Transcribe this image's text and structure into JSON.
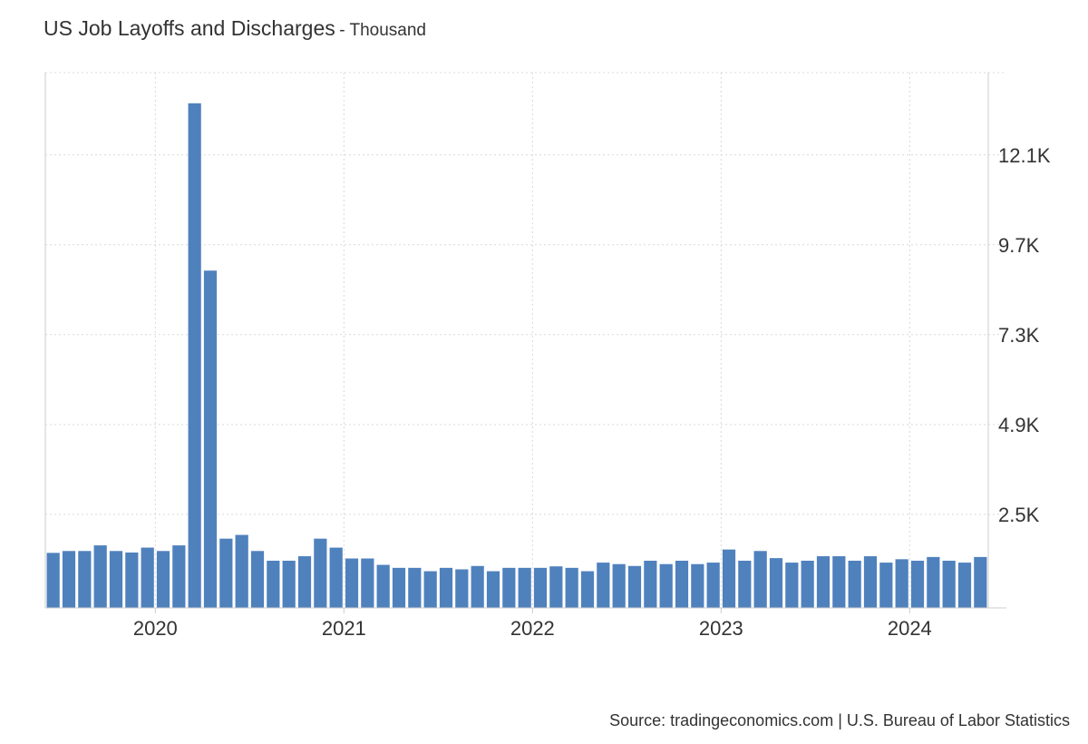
{
  "title": "US Job Layoffs and Discharges",
  "unit_suffix": "- Thousand",
  "source": "Source: tradingeconomics.com | U.S. Bureau of Labor Statistics",
  "colors": {
    "bar": "#4f81bd",
    "grid": "#d9d9d9",
    "axis": "#cccccc"
  },
  "chart_data": {
    "type": "bar",
    "x": [
      "2019-06",
      "2019-07",
      "2019-08",
      "2019-09",
      "2019-10",
      "2019-11",
      "2019-12",
      "2020-01",
      "2020-02",
      "2020-03",
      "2020-04",
      "2020-05",
      "2020-06",
      "2020-07",
      "2020-08",
      "2020-09",
      "2020-10",
      "2020-11",
      "2020-12",
      "2021-01",
      "2021-02",
      "2021-03",
      "2021-04",
      "2021-05",
      "2021-06",
      "2021-07",
      "2021-08",
      "2021-09",
      "2021-10",
      "2021-11",
      "2021-12",
      "2022-01",
      "2022-02",
      "2022-03",
      "2022-04",
      "2022-05",
      "2022-06",
      "2022-07",
      "2022-08",
      "2022-09",
      "2022-10",
      "2022-11",
      "2022-12",
      "2023-01",
      "2023-02",
      "2023-03",
      "2023-04",
      "2023-05",
      "2023-06",
      "2023-07",
      "2023-08",
      "2023-09",
      "2023-10",
      "2023-11",
      "2023-12",
      "2024-01",
      "2024-02",
      "2024-03",
      "2024-04",
      "2024-05"
    ],
    "values": [
      1470,
      1520,
      1520,
      1670,
      1520,
      1480,
      1610,
      1520,
      1670,
      13480,
      9010,
      1850,
      1950,
      1520,
      1260,
      1260,
      1380,
      1850,
      1610,
      1320,
      1320,
      1150,
      1070,
      1070,
      980,
      1070,
      1030,
      1120,
      980,
      1070,
      1070,
      1070,
      1110,
      1070,
      980,
      1210,
      1170,
      1120,
      1260,
      1170,
      1260,
      1170,
      1210,
      1560,
      1260,
      1520,
      1330,
      1210,
      1260,
      1380,
      1380,
      1260,
      1380,
      1210,
      1300,
      1260,
      1360,
      1260,
      1210,
      1360
    ],
    "x_tick_labels": [
      "2020",
      "2021",
      "2022",
      "2023",
      "2024"
    ],
    "y_tick_labels": [
      "2.5K",
      "4.9K",
      "7.3K",
      "9.7K",
      "12.1K"
    ],
    "y_tick_values": [
      2500,
      4900,
      7300,
      9700,
      12100
    ],
    "ylim": [
      0,
      14300
    ],
    "grid": true,
    "y_axis_position": "right"
  }
}
